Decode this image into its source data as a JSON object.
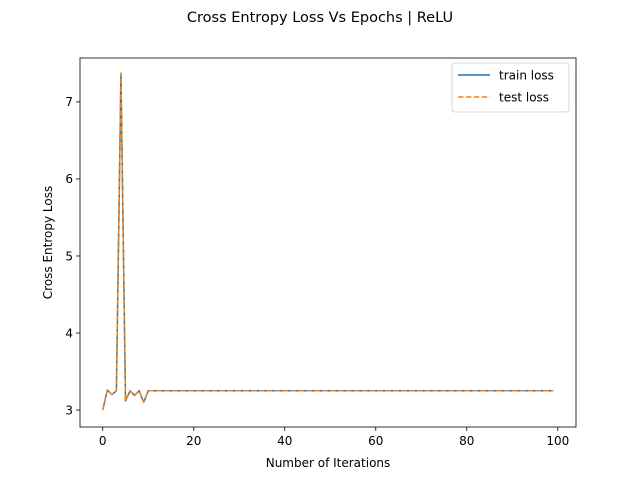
{
  "chart_data": {
    "type": "line",
    "title": "Cross Entropy Loss Vs Epochs | ReLU",
    "xlabel": "Number of Iterations",
    "ylabel": "Cross Entropy Loss",
    "xlim": [
      -5,
      104
    ],
    "ylim": [
      2.78,
      7.57
    ],
    "xticks": [
      0,
      20,
      40,
      60,
      80,
      100
    ],
    "yticks": [
      3,
      4,
      5,
      6,
      7
    ],
    "grid": false,
    "legend_position": "top-right",
    "series": [
      {
        "name": "train loss",
        "color": "#1f77b4",
        "dash": "solid",
        "x": [
          0,
          1,
          2,
          3,
          4,
          5,
          6,
          7,
          8,
          9,
          10,
          11,
          12,
          13,
          14,
          15,
          16,
          17,
          18,
          19,
          20,
          21,
          22,
          23,
          24,
          25,
          26,
          27,
          28,
          29,
          30,
          31,
          32,
          33,
          34,
          35,
          36,
          37,
          38,
          39,
          40,
          41,
          42,
          43,
          44,
          45,
          46,
          47,
          48,
          49,
          50,
          51,
          52,
          53,
          54,
          55,
          56,
          57,
          58,
          59,
          60,
          61,
          62,
          63,
          64,
          65,
          66,
          67,
          68,
          69,
          70,
          71,
          72,
          73,
          74,
          75,
          76,
          77,
          78,
          79,
          80,
          81,
          82,
          83,
          84,
          85,
          86,
          87,
          88,
          89,
          90,
          91,
          92,
          93,
          94,
          95,
          96,
          97,
          98,
          99
        ],
        "values": [
          3.0,
          3.26,
          3.2,
          3.25,
          7.37,
          3.12,
          3.25,
          3.19,
          3.25,
          3.1,
          3.25,
          3.25,
          3.25,
          3.25,
          3.25,
          3.25,
          3.25,
          3.25,
          3.25,
          3.25,
          3.25,
          3.25,
          3.25,
          3.25,
          3.25,
          3.25,
          3.25,
          3.25,
          3.25,
          3.25,
          3.25,
          3.25,
          3.25,
          3.25,
          3.25,
          3.25,
          3.25,
          3.25,
          3.25,
          3.25,
          3.25,
          3.25,
          3.25,
          3.25,
          3.25,
          3.25,
          3.25,
          3.25,
          3.25,
          3.25,
          3.25,
          3.25,
          3.25,
          3.25,
          3.25,
          3.25,
          3.25,
          3.25,
          3.25,
          3.25,
          3.25,
          3.25,
          3.25,
          3.25,
          3.25,
          3.25,
          3.25,
          3.25,
          3.25,
          3.25,
          3.25,
          3.25,
          3.25,
          3.25,
          3.25,
          3.25,
          3.25,
          3.25,
          3.25,
          3.25,
          3.25,
          3.25,
          3.25,
          3.25,
          3.25,
          3.25,
          3.25,
          3.25,
          3.25,
          3.25,
          3.25,
          3.25,
          3.25,
          3.25,
          3.25,
          3.25,
          3.25,
          3.25,
          3.25,
          3.25
        ]
      },
      {
        "name": "test loss",
        "color": "#ff7f0e",
        "dash": "dashed",
        "x": [
          0,
          1,
          2,
          3,
          4,
          5,
          6,
          7,
          8,
          9,
          10,
          11,
          12,
          13,
          14,
          15,
          16,
          17,
          18,
          19,
          20,
          21,
          22,
          23,
          24,
          25,
          26,
          27,
          28,
          29,
          30,
          31,
          32,
          33,
          34,
          35,
          36,
          37,
          38,
          39,
          40,
          41,
          42,
          43,
          44,
          45,
          46,
          47,
          48,
          49,
          50,
          51,
          52,
          53,
          54,
          55,
          56,
          57,
          58,
          59,
          60,
          61,
          62,
          63,
          64,
          65,
          66,
          67,
          68,
          69,
          70,
          71,
          72,
          73,
          74,
          75,
          76,
          77,
          78,
          79,
          80,
          81,
          82,
          83,
          84,
          85,
          86,
          87,
          88,
          89,
          90,
          91,
          92,
          93,
          94,
          95,
          96,
          97,
          98,
          99
        ],
        "values": [
          3.0,
          3.26,
          3.2,
          3.25,
          7.37,
          3.12,
          3.25,
          3.19,
          3.25,
          3.1,
          3.25,
          3.25,
          3.25,
          3.25,
          3.25,
          3.25,
          3.25,
          3.25,
          3.25,
          3.25,
          3.25,
          3.25,
          3.25,
          3.25,
          3.25,
          3.25,
          3.25,
          3.25,
          3.25,
          3.25,
          3.25,
          3.25,
          3.25,
          3.25,
          3.25,
          3.25,
          3.25,
          3.25,
          3.25,
          3.25,
          3.25,
          3.25,
          3.25,
          3.25,
          3.25,
          3.25,
          3.25,
          3.25,
          3.25,
          3.25,
          3.25,
          3.25,
          3.25,
          3.25,
          3.25,
          3.25,
          3.25,
          3.25,
          3.25,
          3.25,
          3.25,
          3.25,
          3.25,
          3.25,
          3.25,
          3.25,
          3.25,
          3.25,
          3.25,
          3.25,
          3.25,
          3.25,
          3.25,
          3.25,
          3.25,
          3.25,
          3.25,
          3.25,
          3.25,
          3.25,
          3.25,
          3.25,
          3.25,
          3.25,
          3.25,
          3.25,
          3.25,
          3.25,
          3.25,
          3.25,
          3.25,
          3.25,
          3.25,
          3.25,
          3.25,
          3.25,
          3.25,
          3.25,
          3.25,
          3.25
        ]
      }
    ]
  }
}
